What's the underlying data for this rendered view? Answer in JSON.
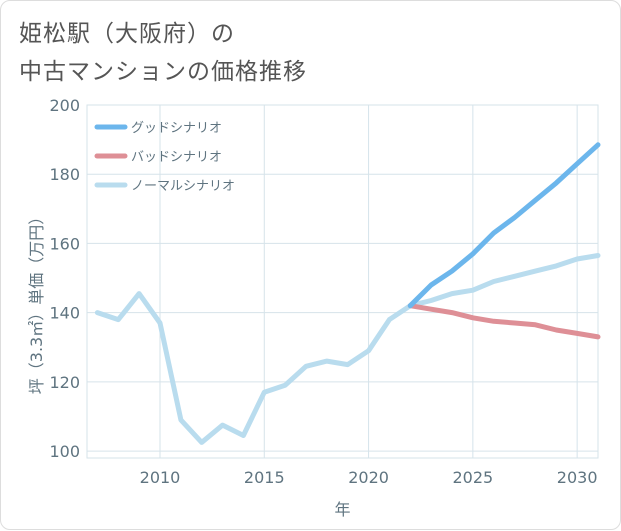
{
  "title_lines": [
    "姫松駅（大阪府）の",
    "中古マンションの価格推移"
  ],
  "chart_data": {
    "type": "line",
    "title": "姫松駅（大阪府）の中古マンションの価格推移",
    "xlabel": "年",
    "ylabel": "坪（3.3㎡）単価（万円）",
    "xlim": [
      2006.5,
      2031
    ],
    "ylim": [
      98,
      200
    ],
    "x_ticks": [
      2010,
      2015,
      2020,
      2025,
      2030
    ],
    "y_ticks": [
      100,
      120,
      140,
      160,
      180,
      200
    ],
    "grid": true,
    "legend_position": "top-left",
    "series": [
      {
        "name": "グッドシナリオ",
        "color": "#6cb6ec",
        "x": [
          2022,
          2023,
          2024,
          2025,
          2026,
          2027,
          2028,
          2029,
          2030,
          2031
        ],
        "values": [
          142,
          148,
          152,
          157,
          163,
          167.5,
          172.5,
          177.5,
          183,
          188.5
        ]
      },
      {
        "name": "バッドシナリオ",
        "color": "#de8f96",
        "x": [
          2022,
          2023,
          2024,
          2025,
          2026,
          2027,
          2028,
          2029,
          2030,
          2031
        ],
        "values": [
          142,
          141,
          140,
          138.5,
          137.5,
          137,
          136.5,
          135,
          134,
          133
        ]
      },
      {
        "name": "ノーマルシナリオ",
        "color": "#b9dcee",
        "x": [
          2007,
          2008,
          2009,
          2010,
          2011,
          2012,
          2013,
          2014,
          2015,
          2016,
          2017,
          2018,
          2019,
          2020,
          2021,
          2022,
          2023,
          2024,
          2025,
          2026,
          2027,
          2028,
          2029,
          2030,
          2031
        ],
        "values": [
          140,
          138,
          145.5,
          137,
          109,
          102.5,
          107.5,
          104.5,
          117,
          119,
          124.5,
          126,
          125,
          129,
          138,
          142,
          143.5,
          145.5,
          146.5,
          149,
          150.5,
          152,
          153.5,
          155.5,
          156.5
        ]
      }
    ]
  }
}
